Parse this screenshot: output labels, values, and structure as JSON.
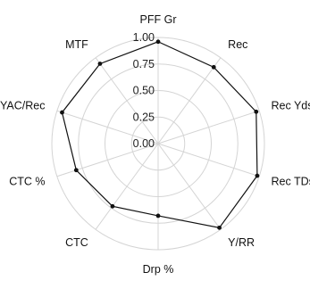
{
  "chart_data": {
    "type": "radar",
    "axes": [
      "PFF Gr",
      "Rec",
      "Rec Yds",
      "Rec TDs",
      "Y/RR",
      "Drp %",
      "CTC",
      "CTC %",
      "YAC/Rec",
      "MTF"
    ],
    "series": [
      {
        "values": [
          0.96,
          0.89,
          0.97,
          0.98,
          0.98,
          0.68,
          0.73,
          0.81,
          0.95,
          0.93
        ]
      }
    ],
    "rlim": [
      0,
      1
    ],
    "ticks": [
      "0.00",
      "0.25",
      "0.50",
      "0.75",
      "1.00"
    ],
    "grid": true,
    "line_color": "#111111",
    "grid_color": "#d4d4d4"
  }
}
